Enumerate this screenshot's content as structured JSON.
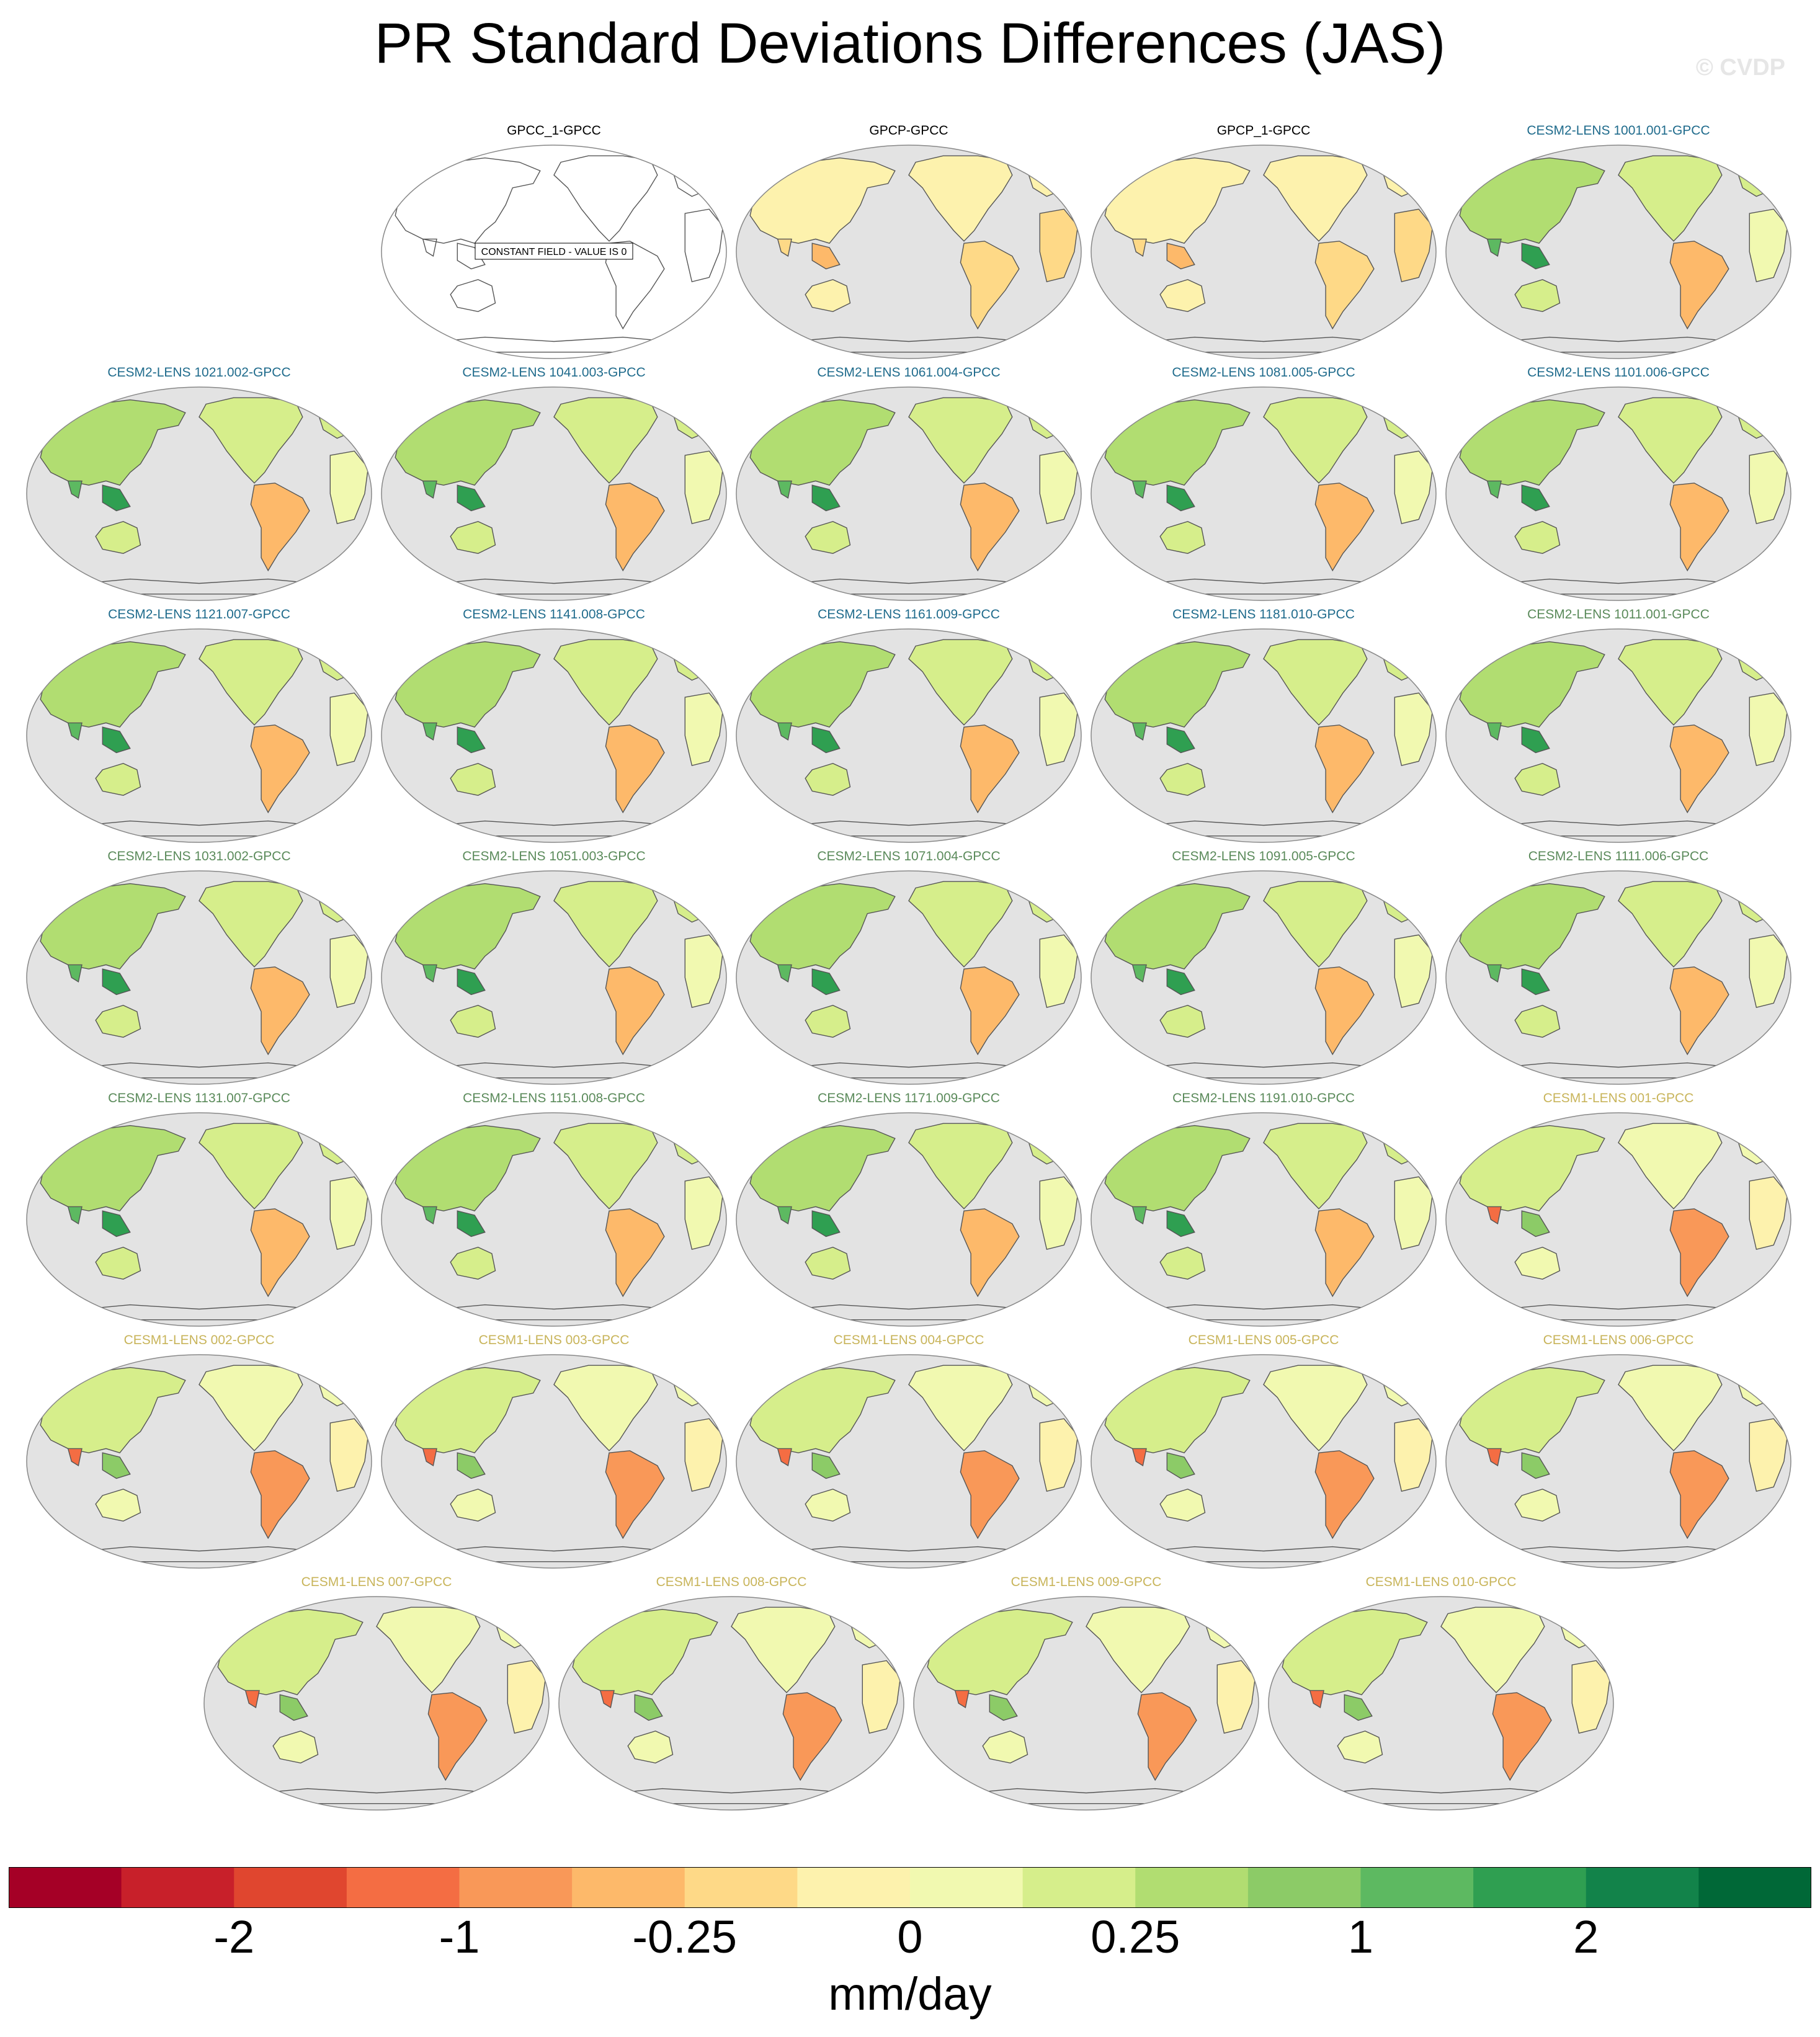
{
  "title": "PR Standard Deviations Differences (JAS)",
  "watermark": "© CVDP",
  "chart_data": {
    "type": "heatmap",
    "description_type": "map-panels",
    "projection": "Robinson (Pacific-centered)",
    "title": "PR Standard Deviations Differences (JAS)",
    "units": "mm/day",
    "constant_field_note": "CONSTANT FIELD - VALUE IS 0",
    "panels": [
      {
        "label": "GPCC_1-GPCC",
        "group": "obs",
        "constant": true
      },
      {
        "label": "GPCP-GPCC",
        "group": "obs"
      },
      {
        "label": "GPCP_1-GPCC",
        "group": "obs"
      },
      {
        "label": "CESM2-LENS 1001.001-GPCC",
        "group": "cesm2-a"
      },
      {
        "label": "CESM2-LENS 1021.002-GPCC",
        "group": "cesm2-a"
      },
      {
        "label": "CESM2-LENS 1041.003-GPCC",
        "group": "cesm2-a"
      },
      {
        "label": "CESM2-LENS 1061.004-GPCC",
        "group": "cesm2-a"
      },
      {
        "label": "CESM2-LENS 1081.005-GPCC",
        "group": "cesm2-a"
      },
      {
        "label": "CESM2-LENS 1101.006-GPCC",
        "group": "cesm2-a"
      },
      {
        "label": "CESM2-LENS 1121.007-GPCC",
        "group": "cesm2-a"
      },
      {
        "label": "CESM2-LENS 1141.008-GPCC",
        "group": "cesm2-a"
      },
      {
        "label": "CESM2-LENS 1161.009-GPCC",
        "group": "cesm2-a"
      },
      {
        "label": "CESM2-LENS 1181.010-GPCC",
        "group": "cesm2-a"
      },
      {
        "label": "CESM2-LENS 1011.001-GPCC",
        "group": "cesm2-b"
      },
      {
        "label": "CESM2-LENS 1031.002-GPCC",
        "group": "cesm2-b"
      },
      {
        "label": "CESM2-LENS 1051.003-GPCC",
        "group": "cesm2-b"
      },
      {
        "label": "CESM2-LENS 1071.004-GPCC",
        "group": "cesm2-b"
      },
      {
        "label": "CESM2-LENS 1091.005-GPCC",
        "group": "cesm2-b"
      },
      {
        "label": "CESM2-LENS 1111.006-GPCC",
        "group": "cesm2-b"
      },
      {
        "label": "CESM2-LENS 1131.007-GPCC",
        "group": "cesm2-b"
      },
      {
        "label": "CESM2-LENS 1151.008-GPCC",
        "group": "cesm2-b"
      },
      {
        "label": "CESM2-LENS 1171.009-GPCC",
        "group": "cesm2-b"
      },
      {
        "label": "CESM2-LENS 1191.010-GPCC",
        "group": "cesm2-b"
      },
      {
        "label": "CESM1-LENS 001-GPCC",
        "group": "cesm1"
      },
      {
        "label": "CESM1-LENS 002-GPCC",
        "group": "cesm1"
      },
      {
        "label": "CESM1-LENS 003-GPCC",
        "group": "cesm1"
      },
      {
        "label": "CESM1-LENS 004-GPCC",
        "group": "cesm1"
      },
      {
        "label": "CESM1-LENS 005-GPCC",
        "group": "cesm1"
      },
      {
        "label": "CESM1-LENS 006-GPCC",
        "group": "cesm1"
      },
      {
        "label": "CESM1-LENS 007-GPCC",
        "group": "cesm1"
      },
      {
        "label": "CESM1-LENS 008-GPCC",
        "group": "cesm1"
      },
      {
        "label": "CESM1-LENS 009-GPCC",
        "group": "cesm1"
      },
      {
        "label": "CESM1-LENS 010-GPCC",
        "group": "cesm1"
      }
    ],
    "group_label_colors": {
      "obs": "#000000",
      "cesm2-a": "#1f6b8c",
      "cesm2-b": "#5a8a5a",
      "cesm1": "#c8b45a"
    },
    "colorbar": {
      "colors": [
        "#a50026",
        "#c8202a",
        "#e0462f",
        "#f46d43",
        "#f99858",
        "#fdb96a",
        "#fed987",
        "#fdf2ad",
        "#f1f9b0",
        "#d6ee8b",
        "#b1dd71",
        "#8ccb67",
        "#5db961",
        "#2f9f51",
        "#12834a",
        "#006837"
      ],
      "tick_labels": [
        "-2",
        "-1",
        "-0.25",
        "0",
        "0.25",
        "1",
        "2"
      ],
      "tick_boundaries": [
        2,
        4,
        6,
        8,
        10,
        12,
        14
      ]
    },
    "ocean_color": "#e3e3e3",
    "coast_color": "#555555"
  }
}
